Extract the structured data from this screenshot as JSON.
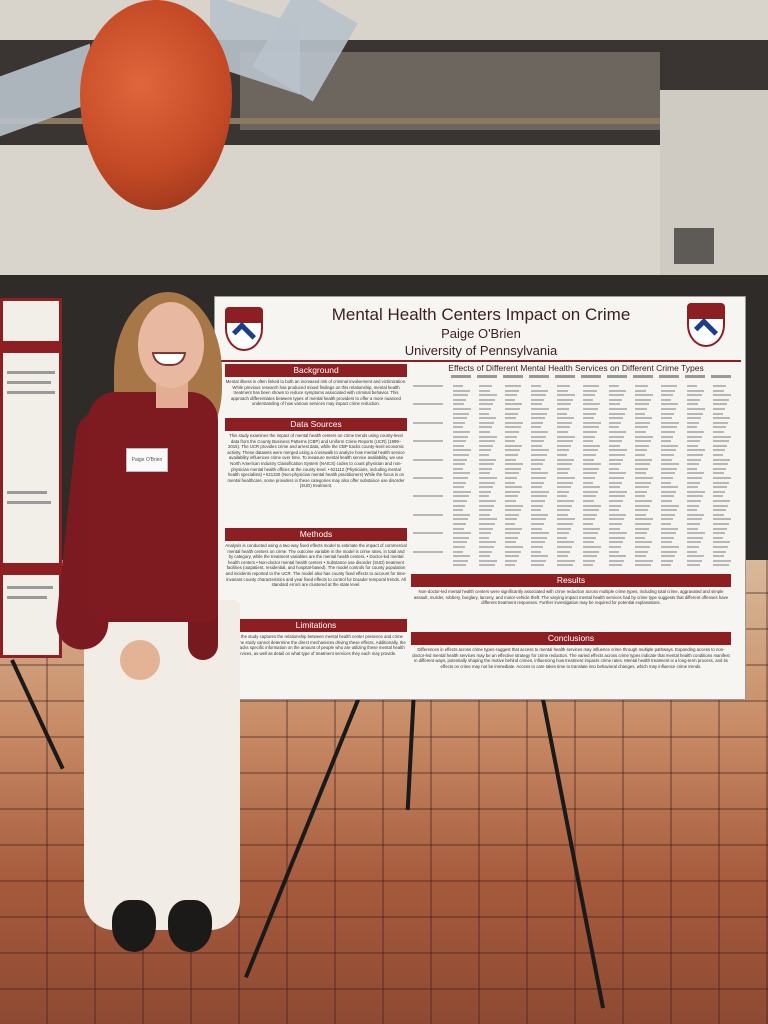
{
  "poster": {
    "title": "Mental Health Centers Impact on Crime",
    "author": "Paige O'Brien",
    "university": "University of Pennsylvania",
    "table_title": "Effects of Different Mental Health Services on Different Crime Types",
    "sections": {
      "background": "Background",
      "data_sources": "Data Sources",
      "methods": "Methods",
      "limitations": "Limitations",
      "results": "Results",
      "conclusions": "Conclusions"
    },
    "background_text": "Mental illness is often linked to both an increased risk of criminal involvement and victimization. While previous research has produced mixed findings on this relationship, mental health treatment has been shown to reduce symptoms associated with criminal behavior. This approach differentiates between types of mental health providers to offer a more nuanced understanding of how various services may impact crime reduction.",
    "data_sources_text": "This study examines the impact of mental health centers on crime trends using county-level data from the County Business Patterns (CBP) and Uniform Crime Reports (UCR) (1999–2015). The UCR provides crime and arrest data, while the CBP tracks county-level economic activity. These datasets were merged using a crosswalk to analyze how mental health service availability influences crime over time. To measure mental health service availability, we use North American Industry Classification System (NAICS) codes to count physician and non-physician mental health offices at the county level. • 621112 (Physicians, including mental health specialists) • 621330 (Non-physician mental health practitioners) While the focus is on mental healthcare, some providers in these categories may also offer substance use disorder (SUD) treatment.",
    "methods_text": "Analysis is conducted using a two-way fixed effects model to estimate the impact of commercial mental health centers on crime. The outcome variable in the model is crime rates, in total and by category, while the treatment variables are the mental health centers. • Doctor-led mental health centers • Non-doctor mental health centers • Substance use disorder (SUD) treatment facilities (outpatient, residential, and hospital-based). The model controls for county population and incidents reported to the UCR. The model also has county fixed effects to account for time-invariant county characteristics and year fixed effects to control for broader temporal trends. All standard errors are clustered at the state level.",
    "limitations_text": "While the study captures the relationship between mental health center presence and crime rates, the study cannot determine the direct mechanisms driving these effects. Additionally, the study lacks specific information on the amount of people who are utilizing these mental health services, as well as detail on what type of treatment services they each may provide.",
    "results_text": "Non-doctor-led mental health centers were significantly associated with crime reduction across multiple crime types, including total crime, aggravated and simple assault, murder, robbery, burglary, larceny, and motor vehicle theft. The varying impact mental health services had by crime type suggests that different offenses have different treatment responses. Further investigation may be required for potential explanations.",
    "conclusions_text": "Differences in effects across crime types suggest that access to mental health services may influence crime through multiple pathways. Expanding access to non-doctor-led mental health services may be an effective strategy for crime reduction. The varied effects across crime types indicate that mental health conditions manifest in different ways, potentially shaping the motive behind crimes, influencing how treatment impacts crime rates. Mental health treatment is a long-term process, and its effects on crime may not be immediate. Access to care takes time to translate into behavioral changes, which may influence crime trends."
  },
  "nametag": "Paige O'Brien",
  "colors": {
    "poster_red": "#8d1f22",
    "shirt": "#7e1b21",
    "pants": "#f1ece6",
    "floor_tile": "#a65a3c"
  }
}
